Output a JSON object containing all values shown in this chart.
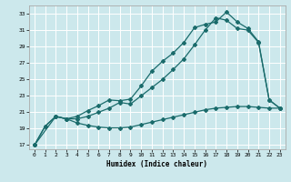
{
  "xlabel": "Humidex (Indice chaleur)",
  "bg_color": "#cce8ec",
  "grid_color": "#ffffff",
  "line_color": "#1a6b6b",
  "xlim": [
    -0.5,
    23.5
  ],
  "ylim": [
    16.5,
    34.0
  ],
  "xticks": [
    0,
    1,
    2,
    3,
    4,
    5,
    6,
    7,
    8,
    9,
    10,
    11,
    12,
    13,
    14,
    15,
    16,
    17,
    18,
    19,
    20,
    21,
    22,
    23
  ],
  "yticks": [
    17,
    19,
    21,
    23,
    25,
    27,
    29,
    31,
    33
  ],
  "line1_x": [
    0,
    1,
    2,
    3,
    4,
    5,
    6,
    7,
    8,
    9,
    10,
    11,
    12,
    13,
    14,
    15,
    16,
    17,
    18,
    19,
    20,
    21,
    22,
    23
  ],
  "line1_y": [
    17.0,
    19.3,
    20.5,
    20.2,
    19.7,
    19.4,
    19.2,
    19.1,
    19.1,
    19.2,
    19.5,
    19.8,
    20.1,
    20.4,
    20.7,
    21.0,
    21.3,
    21.5,
    21.6,
    21.7,
    21.7,
    21.6,
    21.5,
    21.5
  ],
  "line2_x": [
    0,
    1,
    2,
    3,
    4,
    5,
    6,
    7,
    8,
    9,
    10,
    11,
    12,
    13,
    14,
    15,
    16,
    17,
    18,
    19,
    20,
    21,
    22,
    23
  ],
  "line2_y": [
    17.0,
    19.3,
    20.5,
    20.2,
    20.2,
    20.5,
    21.0,
    21.5,
    22.2,
    22.0,
    23.0,
    24.0,
    25.0,
    26.2,
    27.5,
    29.2,
    31.0,
    32.5,
    32.2,
    31.2,
    31.0,
    29.5,
    22.5,
    21.5
  ],
  "line3_x": [
    0,
    2,
    3,
    4,
    5,
    6,
    7,
    8,
    9,
    10,
    11,
    12,
    13,
    14,
    15,
    16,
    17,
    18,
    19,
    20,
    21,
    22,
    23
  ],
  "line3_y": [
    17.0,
    20.5,
    20.2,
    20.5,
    21.2,
    21.8,
    22.5,
    22.4,
    22.6,
    24.2,
    26.0,
    27.2,
    28.2,
    29.5,
    31.3,
    31.7,
    32.0,
    33.2,
    32.0,
    31.2,
    29.6,
    22.5,
    21.5
  ]
}
